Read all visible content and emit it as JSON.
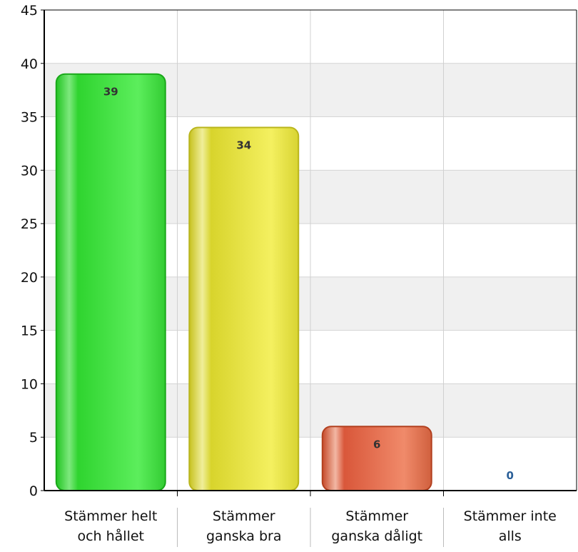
{
  "chart_data": {
    "type": "bar",
    "categories": [
      [
        "Stämmer helt",
        "och hållet"
      ],
      [
        "Stämmer",
        "ganska bra"
      ],
      [
        "Stämmer",
        "ganska dåligt"
      ],
      [
        "Stämmer inte",
        "alls"
      ]
    ],
    "values": [
      39,
      34,
      6,
      0
    ],
    "value_labels": [
      "39",
      "34",
      "6",
      "0"
    ],
    "bar_colors": [
      "#33dd33",
      "#e4e040",
      "#e06a48",
      "#3a6fa8"
    ],
    "ylim": [
      0,
      45
    ],
    "yticks": [
      0,
      5,
      10,
      15,
      20,
      25,
      30,
      35,
      40,
      45
    ],
    "ytick_labels": [
      "0",
      "5",
      "10",
      "15",
      "20",
      "25",
      "30",
      "35",
      "40",
      "45"
    ],
    "grid": true,
    "legend": "none"
  }
}
